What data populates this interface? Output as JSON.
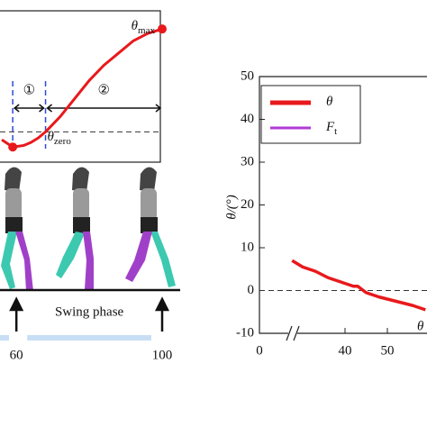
{
  "chart_data": [
    {
      "type": "line",
      "x": [
        56,
        59,
        62,
        64,
        66,
        68,
        72,
        76,
        80,
        84,
        88,
        92,
        96,
        100
      ],
      "series": [
        {
          "color": "#e8191c",
          "values": [
            -2.6,
            -5,
            -4.5,
            -3.5,
            -2,
            0,
            5,
            11,
            17,
            22,
            26,
            30,
            32.5,
            34
          ]
        }
      ],
      "marker_indices": [
        1,
        13
      ],
      "xlim": [
        56,
        100
      ],
      "ylim": [
        -10,
        40
      ],
      "xticks": [
        60,
        100
      ],
      "reference_line": 0,
      "max_label": {
        "text": "θ",
        "sub": "max"
      },
      "zero_label": {
        "text": "θ",
        "sub": "zero"
      },
      "phases": [
        {
          "label": "①",
          "from": 59,
          "to": 68
        },
        {
          "label": "②",
          "from": 68,
          "to": 100
        }
      ],
      "phase_axis_label": "Swing phase"
    },
    {
      "type": "line",
      "ylabel": "θ/(°)",
      "series": [
        {
          "name": "θ",
          "color": "#e8191c",
          "x": [
            27.5,
            30,
            33,
            36,
            39,
            42,
            43,
            45,
            48,
            52,
            56,
            59
          ],
          "values": [
            7,
            5.5,
            4.5,
            3,
            2,
            1,
            1,
            -0.5,
            -1.5,
            -2.5,
            -3.5,
            -4.5
          ]
        },
        {
          "name": "F",
          "sub": "t",
          "color": "#b03ad6",
          "x": [],
          "values": []
        }
      ],
      "xlim": [
        25,
        60
      ],
      "ylim": [
        -10,
        50
      ],
      "xticks": [
        0,
        40,
        50
      ],
      "yticks": [
        50,
        40,
        30,
        20,
        10,
        0,
        -10
      ],
      "reference_line": 0,
      "curve_label": "θ"
    }
  ]
}
